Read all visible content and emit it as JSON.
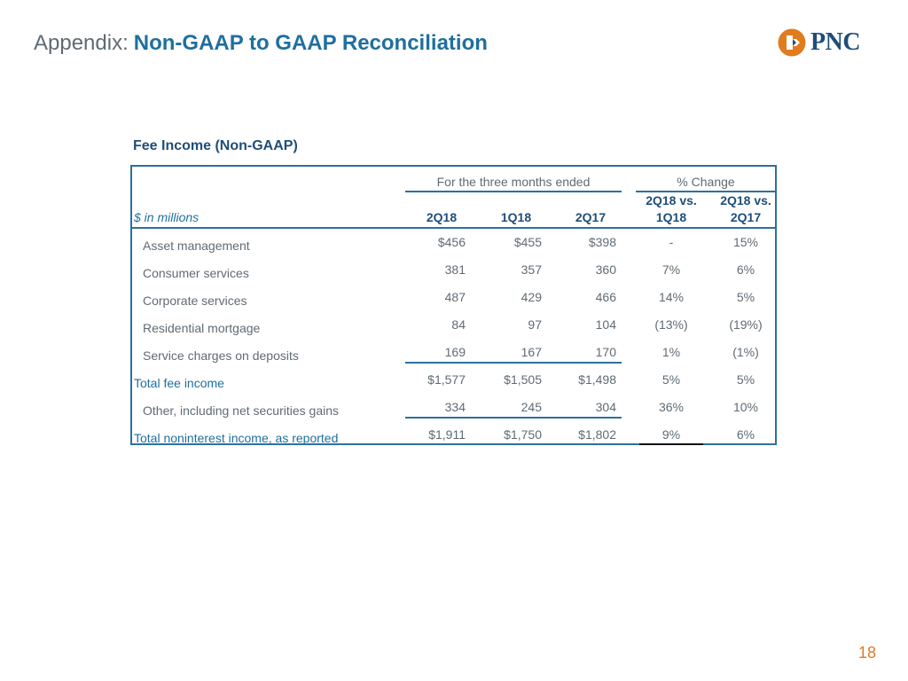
{
  "header": {
    "prefix": "Appendix:",
    "title": "Non-GAAP to GAAP Reconciliation",
    "logo_text": "PNC",
    "logo_icon": "pnc-diamond-logo-icon"
  },
  "section_title": "Fee Income (Non-GAAP)",
  "table": {
    "group_headers": {
      "period": "For the three months ended",
      "change": "% Change"
    },
    "units_label": "$ in millions",
    "columns": [
      "2Q18",
      "1Q18",
      "2Q17"
    ],
    "change_columns": [
      {
        "line1": "2Q18 vs.",
        "line2": "1Q18"
      },
      {
        "line1": "2Q18 vs.",
        "line2": "2Q17"
      }
    ],
    "rows": [
      {
        "label": "Asset management",
        "values": [
          "$456",
          "$455",
          "$398"
        ],
        "changes": [
          "-",
          "15%"
        ]
      },
      {
        "label": "Consumer services",
        "values": [
          "381",
          "357",
          "360"
        ],
        "changes": [
          "7%",
          "6%"
        ]
      },
      {
        "label": "Corporate services",
        "values": [
          "487",
          "429",
          "466"
        ],
        "changes": [
          "14%",
          "5%"
        ]
      },
      {
        "label": "Residential mortgage",
        "values": [
          "84",
          "97",
          "104"
        ],
        "changes": [
          "(13%)",
          "(19%)"
        ]
      },
      {
        "label": "Service charges on deposits",
        "values": [
          "169",
          "167",
          "170"
        ],
        "changes": [
          "1%",
          "(1%)"
        ]
      },
      {
        "label": "Total fee income",
        "values": [
          "$1,577",
          "$1,505",
          "$1,498"
        ],
        "changes": [
          "5%",
          "5%"
        ]
      },
      {
        "label": "Other, including net securities gains",
        "values": [
          "334",
          "245",
          "304"
        ],
        "changes": [
          "36%",
          "10%"
        ]
      },
      {
        "label": "Total noninterest income, as reported",
        "values": [
          "$1,911",
          "$1,750",
          "$1,802"
        ],
        "changes": [
          "9%",
          "6%"
        ]
      }
    ]
  },
  "page_number": "18",
  "colors": {
    "brand_blue": "#1f4e79",
    "accent_blue": "#1f6f9e",
    "border_blue": "#2f6f9f",
    "brand_orange": "#e07b1f",
    "text_gray": "#5f6b73"
  }
}
